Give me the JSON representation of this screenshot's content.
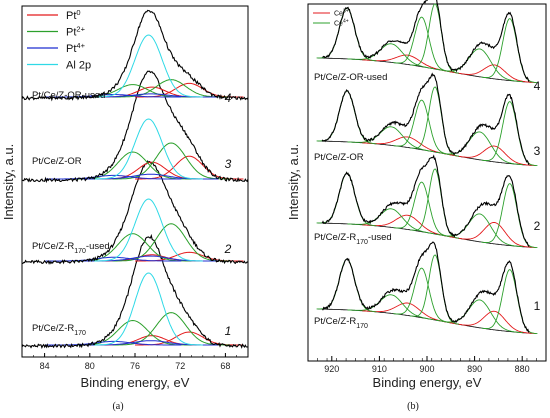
{
  "colors": {
    "spectrum": "#000000",
    "pt0": "#e31a1c",
    "pt2": "#2ca02c",
    "pt4": "#1f2fd1",
    "al2p": "#2fd9e6",
    "ce3": "#e31a1c",
    "ce4": "#2ca02c",
    "background": "#000000"
  },
  "chart_data": [
    {
      "type": "line",
      "panel_label": "(a)",
      "xlabel": "Binding energy, eV",
      "ylabel": "Intensity, a.u.",
      "xlim": [
        86,
        66
      ],
      "x_reversed": true,
      "xticks": [
        "84",
        "80",
        "76",
        "72",
        "68"
      ],
      "xtick_values": [
        84,
        80,
        76,
        72,
        68
      ],
      "legend": {
        "placement": "top-left",
        "entries": [
          {
            "key": "pt0",
            "base": "Pt",
            "sup": "0"
          },
          {
            "key": "pt2",
            "base": "Pt",
            "sup": "2+"
          },
          {
            "key": "pt4",
            "base": "Pt",
            "sup": "4+"
          },
          {
            "key": "al2p",
            "base": "Al 2p",
            "sup": ""
          }
        ]
      },
      "components": {
        "pt0": [
          {
            "center": 71.2,
            "width": 1.2
          },
          {
            "center": 74.5,
            "width": 1.2
          }
        ],
        "pt2": [
          {
            "center": 72.8,
            "width": 1.3
          },
          {
            "center": 76.2,
            "width": 1.3
          }
        ],
        "pt4": [
          {
            "center": 74.6,
            "width": 1.5
          },
          {
            "center": 77.9,
            "width": 1.5
          }
        ],
        "al2p": [
          {
            "center": 74.8,
            "width": 1.2
          }
        ]
      },
      "spectra": [
        {
          "index": "1",
          "name_base": "Pt/Ce/Z-R",
          "name_sub": "170",
          "name_after": "",
          "amplitudes": {
            "pt0": [
              0.18,
              0.13
            ],
            "pt2": [
              0.45,
              0.34
            ],
            "pt4": [
              0.06,
              0.05
            ],
            "al2p": [
              1.0
            ]
          }
        },
        {
          "index": "2",
          "name_base": "Pt/Ce/Z-R",
          "name_sub": "170",
          "name_after": "-used",
          "amplitudes": {
            "pt0": [
              0.14,
              0.1
            ],
            "pt2": [
              0.6,
              0.44
            ],
            "pt4": [
              0.08,
              0.06
            ],
            "al2p": [
              1.0
            ]
          }
        },
        {
          "index": "3",
          "name_base": "Pt/Ce/Z-OR",
          "name_sub": "",
          "name_after": "",
          "amplitudes": {
            "pt0": [
              0.38,
              0.28
            ],
            "pt2": [
              0.6,
              0.45
            ],
            "pt4": [
              0.08,
              0.06
            ],
            "al2p": [
              1.0
            ]
          }
        },
        {
          "index": "4",
          "name_base": "Pt/Ce/Z-OR-used",
          "name_sub": "",
          "name_after": "",
          "amplitudes": {
            "pt0": [
              0.22,
              0.16
            ],
            "pt2": [
              0.28,
              0.2
            ],
            "pt4": [
              0.05,
              0.04
            ],
            "al2p": [
              1.0
            ]
          }
        }
      ]
    },
    {
      "type": "line",
      "panel_label": "(b)",
      "xlabel": "Binding energy, eV",
      "ylabel": "Intensity, a.u.",
      "xlim": [
        925,
        875
      ],
      "x_reversed": true,
      "xticks": [
        "920",
        "910",
        "900",
        "890",
        "880"
      ],
      "xtick_values": [
        920,
        910,
        900,
        890,
        880
      ],
      "legend": {
        "placement": "top-left",
        "entries": [
          {
            "key": "ce3",
            "base": "Ce",
            "sup": "3+"
          },
          {
            "key": "ce4",
            "base": "Ce",
            "sup": "4+"
          }
        ]
      },
      "peaks": {
        "ce4": [
          {
            "center": 882.6,
            "width": 1.5,
            "amp": 1.0
          },
          {
            "center": 888.9,
            "width": 2.3,
            "amp": 0.45
          },
          {
            "center": 898.3,
            "width": 1.3,
            "amp": 1.05
          },
          {
            "center": 901.1,
            "width": 1.5,
            "amp": 0.8
          },
          {
            "center": 907.5,
            "width": 2.3,
            "amp": 0.3
          },
          {
            "center": 916.8,
            "width": 1.6,
            "amp": 0.82
          }
        ],
        "ce3": [
          {
            "center": 885.8,
            "width": 2.2,
            "amp": 0.3
          },
          {
            "center": 904.0,
            "width": 2.4,
            "amp": 0.2
          }
        ]
      },
      "spectra": [
        {
          "index": "1",
          "name_base": "Pt/Ce/Z-R",
          "name_sub": "170",
          "name_after": "",
          "ce3_scale": 1.0
        },
        {
          "index": "2",
          "name_base": "Pt/Ce/Z-R",
          "name_sub": "170",
          "name_after": "-used",
          "ce3_scale": 1.15
        },
        {
          "index": "3",
          "name_base": "Pt/Ce/Z-OR",
          "name_sub": "",
          "name_after": "",
          "ce3_scale": 0.85
        },
        {
          "index": "4",
          "name_base": "Pt/Ce/Z-OR-used",
          "name_sub": "",
          "name_after": "",
          "ce3_scale": 0.75
        }
      ]
    }
  ]
}
